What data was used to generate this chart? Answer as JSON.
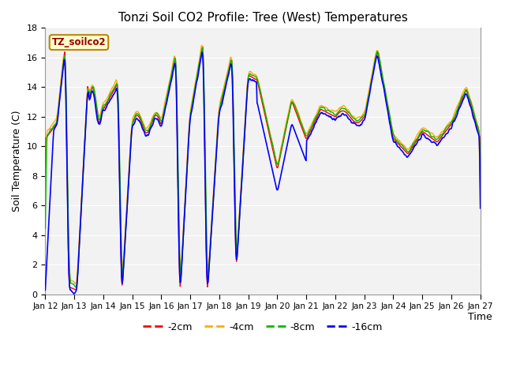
{
  "title": "Tonzi Soil CO2 Profile: Tree (West) Temperatures",
  "xlabel": "Time",
  "ylabel": "Soil Temperature (C)",
  "ylim": [
    0,
    18
  ],
  "legend_label": "TZ_soilco2",
  "legend_bg": "#ffffcc",
  "legend_border": "#b8860b",
  "fig_bg": "#ffffff",
  "plot_bg": "#e8e8e8",
  "line_colors": {
    "-2cm": "#ff0000",
    "-4cm": "#ffaa00",
    "-8cm": "#00bb00",
    "-16cm": "#0000ff"
  },
  "tick_labels": [
    "Jan 12",
    "Jan 13",
    "Jan 14",
    "Jan 15",
    "Jan 16",
    "Jan 17",
    "Jan 18",
    "Jan 19",
    "Jan 20",
    "Jan 21",
    "Jan 22",
    "Jan 23",
    "Jan 24",
    "Jan 25",
    "Jan 26",
    "Jan 27"
  ],
  "series_labels": [
    "-2cm",
    "-4cm",
    "-8cm",
    "-16cm"
  ],
  "yticks": [
    0,
    2,
    4,
    6,
    8,
    10,
    12,
    14,
    16,
    18
  ],
  "grid_color": "#ffffff",
  "title_fontsize": 11,
  "label_fontsize": 9,
  "tick_fontsize": 8
}
